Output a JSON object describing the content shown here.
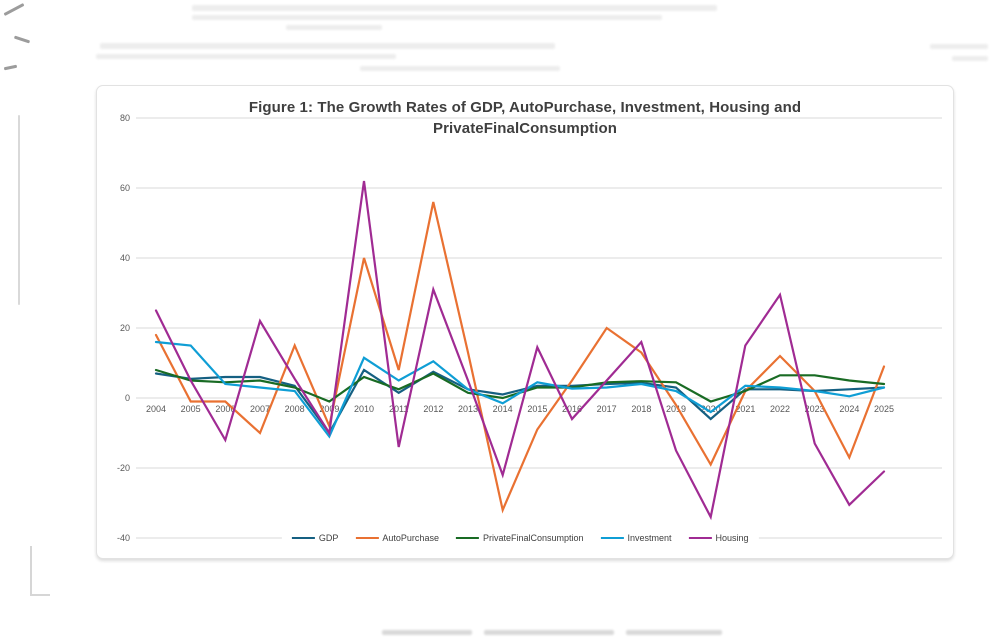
{
  "figure": {
    "title_line1": "Figure 1: The Growth Rates of GDP, AutoPurchase, Investment, Housing and",
    "title_line2": "PrivateFinalConsumption"
  },
  "chart_data": {
    "type": "line",
    "title": "Figure 1: The Growth Rates of GDP, AutoPurchase, Investment, Housing and PrivateFinalConsumption",
    "x": [
      2004,
      2005,
      2006,
      2007,
      2008,
      2009,
      2010,
      2011,
      2012,
      2013,
      2014,
      2015,
      2016,
      2017,
      2018,
      2019,
      2020,
      2021,
      2022,
      2023,
      2024,
      2025
    ],
    "series": [
      {
        "name": "GDP",
        "color": "#156082",
        "values": [
          7,
          5.5,
          6,
          6,
          3.5,
          -10,
          8,
          1.5,
          7.5,
          2.5,
          1,
          3.5,
          3.5,
          4,
          4.3,
          3,
          -6,
          2.5,
          2.5,
          2,
          2.5,
          3
        ]
      },
      {
        "name": "AutoPurchase",
        "color": "#E97132",
        "values": [
          18,
          -1,
          -1,
          -10,
          15,
          -8,
          40,
          8,
          56,
          13,
          -32,
          -9,
          5,
          20,
          13,
          -2,
          -19,
          2,
          12,
          2,
          -17,
          9
        ]
      },
      {
        "name": "PrivateFinalConsumption",
        "color": "#196B24",
        "values": [
          8,
          5,
          4.5,
          5,
          3,
          -1,
          6,
          2.5,
          7,
          1.5,
          0,
          3,
          3,
          4.5,
          4.8,
          4.5,
          -1,
          2,
          6.5,
          6.5,
          5,
          4
        ]
      },
      {
        "name": "Investment",
        "color": "#0F9ED5",
        "values": [
          16,
          15,
          4,
          3,
          2,
          -11,
          11.5,
          5,
          10.5,
          2.5,
          -1.5,
          4.5,
          2.7,
          3,
          4,
          2,
          -4,
          3.5,
          3,
          2,
          0.5,
          3
        ]
      },
      {
        "name": "Housing",
        "color": "#A02B93",
        "values": [
          25,
          5,
          -12,
          22,
          5.5,
          -10,
          62,
          -14,
          31,
          5,
          -22,
          14.5,
          -6,
          5,
          16,
          -15,
          -34,
          15,
          29.5,
          -13,
          -30.5,
          -21
        ]
      }
    ],
    "ylim": [
      -40,
      80
    ],
    "yticks": [
      80,
      60,
      40,
      20,
      0,
      -20,
      -40
    ],
    "grid": true,
    "legend_position": "bottom",
    "grid_color": "#D9D9D9",
    "tick_label_color": "#595959"
  }
}
